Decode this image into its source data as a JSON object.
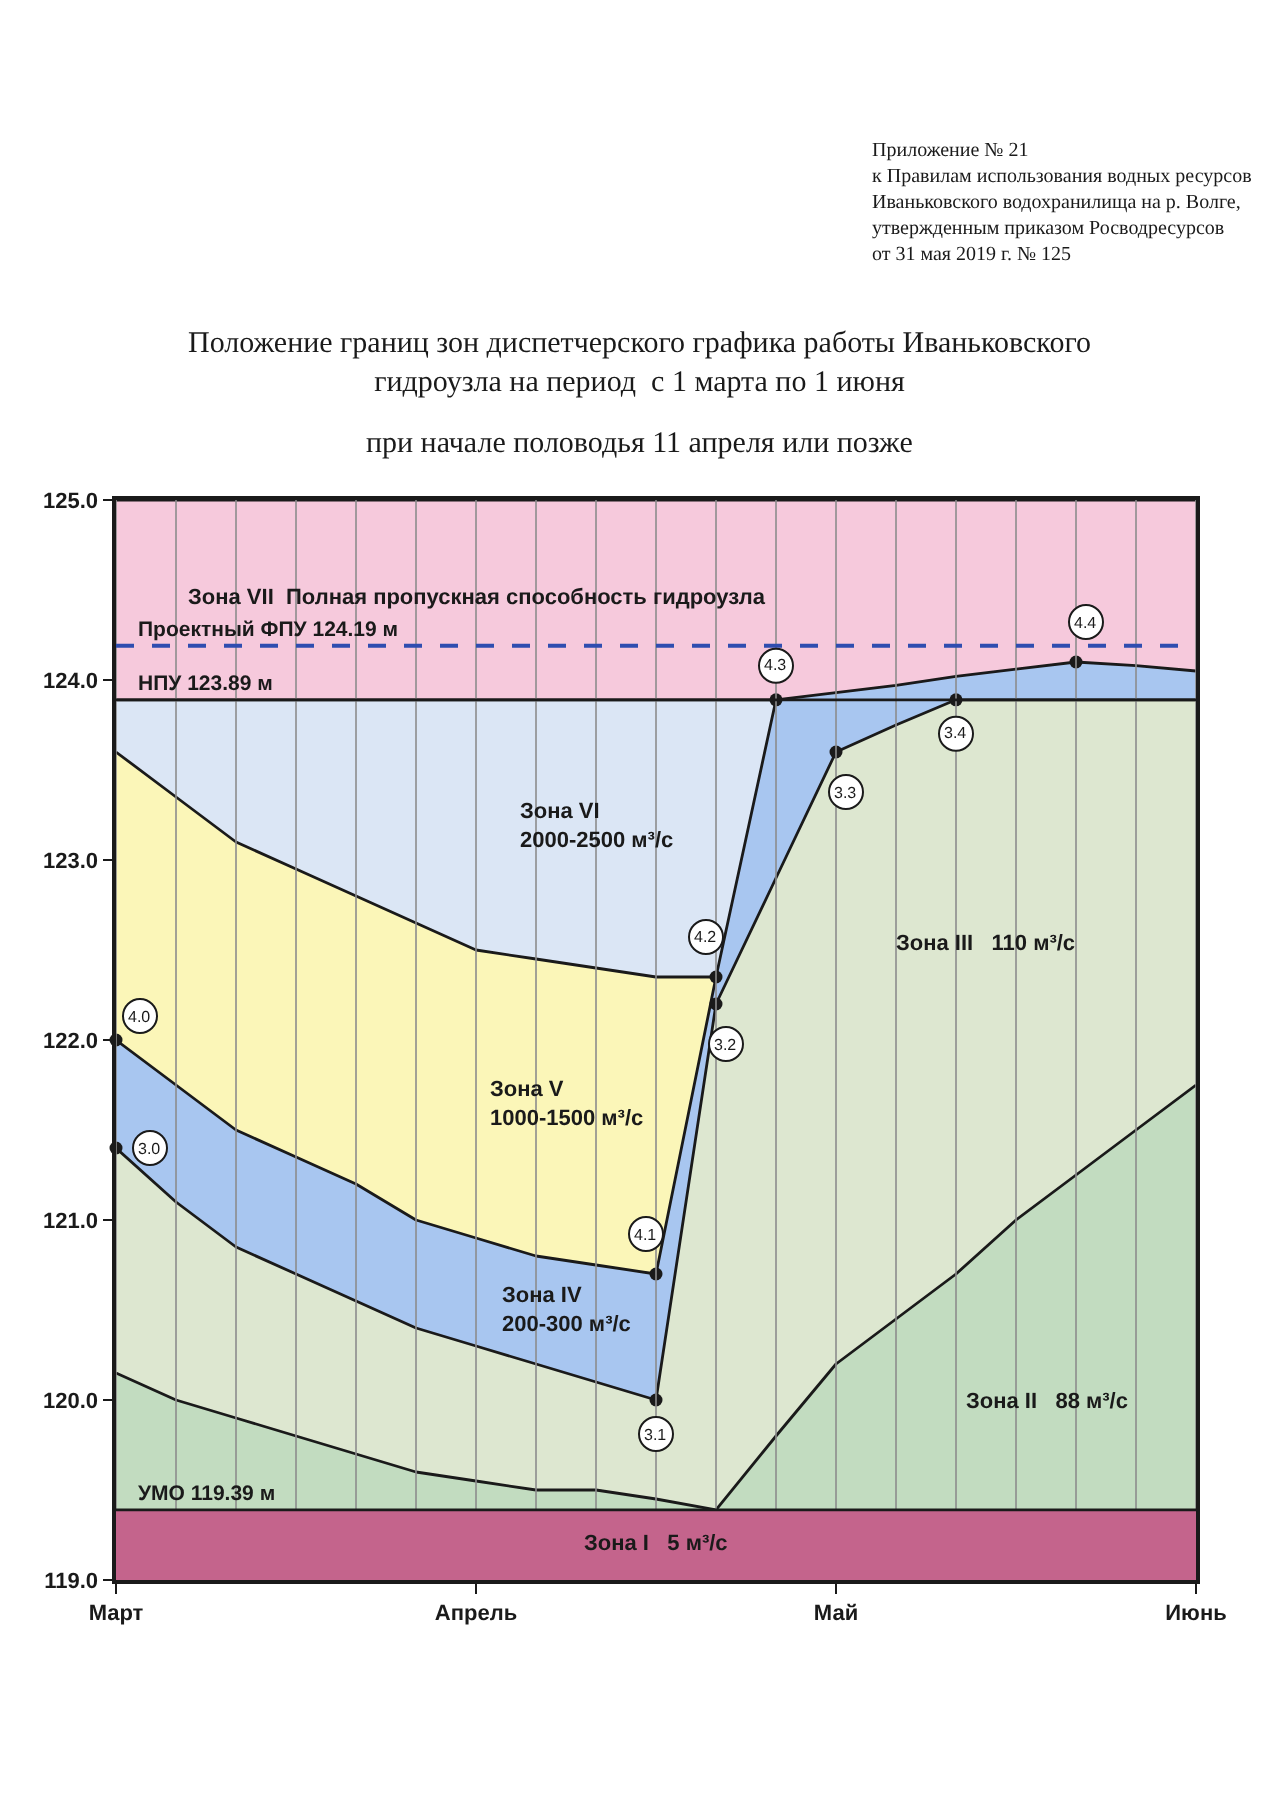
{
  "chart_data": {
    "type": "area",
    "title": "Положение границ зон диспетчерского графика работы Иваньковского гидроузла на период  с 1 марта по 1 июня",
    "subtitle": "при начале половодья 11 апреля или позже",
    "categories": [
      "Март",
      null,
      null,
      null,
      null,
      null,
      "Апрель",
      null,
      null,
      null,
      null,
      null,
      "Май",
      null,
      null,
      null,
      null,
      null,
      "Июнь"
    ],
    "ylim": [
      119,
      125
    ],
    "yticks": [
      {
        "value": 119,
        "label": "119.0"
      },
      {
        "value": 120,
        "label": "120.0"
      },
      {
        "value": 121,
        "label": "121.0"
      },
      {
        "value": 122,
        "label": "122.0"
      },
      {
        "value": 123,
        "label": "123.0"
      },
      {
        "value": 124,
        "label": "124.0"
      },
      {
        "value": 125,
        "label": "125.0"
      }
    ],
    "grid": "x",
    "series": [
      {
        "name": "Зона VII  Полная пропускная способность гидроузла",
        "color": "#f6c9dc",
        "values": [
          125,
          125,
          125,
          125,
          125,
          125,
          125,
          125,
          125,
          125,
          125,
          125,
          125,
          125,
          125,
          125,
          125,
          125,
          125
        ]
      },
      {
        "name": "Зона VI\n2000-2500 м³/с",
        "color": "#dbe6f5",
        "values": [
          123.89,
          123.89,
          123.89,
          123.89,
          123.89,
          123.89,
          123.89,
          123.89,
          123.89,
          123.89,
          123.89,
          123.89,
          null,
          null,
          null,
          null,
          null,
          null,
          null
        ]
      },
      {
        "name": "Зона V\n1000-1500 м³/с",
        "color": "#fbf6b8",
        "values": [
          123.6,
          123.35,
          123.1,
          122.95,
          122.8,
          122.65,
          122.5,
          122.45,
          122.4,
          122.35,
          122.35,
          null,
          null,
          null,
          null,
          null,
          null,
          null,
          null
        ]
      },
      {
        "name": "Зона IV\n200-300 м³/с",
        "color": "#a8c6f0",
        "values": [
          122.0,
          121.75,
          121.5,
          121.35,
          121.2,
          121.0,
          120.9,
          120.8,
          120.75,
          120.7,
          122.35,
          123.89,
          123.93,
          123.97,
          124.02,
          124.06,
          124.1,
          124.08,
          124.05
        ]
      },
      {
        "name": "Зона III   110 м³/с",
        "color": "#dde7d0",
        "values": [
          121.4,
          121.1,
          120.85,
          120.7,
          120.55,
          120.4,
          120.3,
          120.2,
          120.1,
          120.0,
          122.2,
          122.9,
          123.6,
          123.75,
          123.89,
          123.89,
          123.89,
          123.89,
          123.89
        ]
      },
      {
        "name": "Зона II   88 м³/с",
        "color": "#c2dcc0",
        "values": [
          120.15,
          120.0,
          119.9,
          119.8,
          119.7,
          119.6,
          119.55,
          119.5,
          119.5,
          119.45,
          119.39,
          119.8,
          120.2,
          120.45,
          120.7,
          121.0,
          121.25,
          121.5,
          121.75
        ]
      },
      {
        "type": "scatter",
        "marker": "circle",
        "color": "#1a1a1a",
        "values": [
          122.0,
          null,
          null,
          null,
          null,
          null,
          null,
          null,
          null,
          120.7,
          122.35,
          123.89,
          null,
          null,
          null,
          null,
          124.1,
          null,
          null
        ]
      },
      {
        "type": "scatter",
        "marker": "circle",
        "color": "#1a1a1a",
        "values": [
          121.4,
          null,
          null,
          null,
          null,
          null,
          null,
          null,
          null,
          120.0,
          122.2,
          null,
          123.6,
          null,
          123.89,
          null,
          null,
          null,
          null
        ]
      }
    ],
    "bands": [
      {
        "axis": "y",
        "from": 119,
        "to": 119.39,
        "label": "Зона I   5 м³/с",
        "color": "#c4648c"
      }
    ],
    "ref_lines": [
      {
        "axis": "y",
        "value": 124.19,
        "label": "Проектный ФПУ 124.19 м",
        "color": "#2f4db0",
        "line_style": "dashed"
      },
      {
        "axis": "y",
        "value": 123.89,
        "label": "НПУ 123.89 м",
        "color": "#1a1a1a"
      },
      {
        "axis": "y",
        "value": 119.39,
        "label": "УМО 119.39 м",
        "color": "#1a1a1a"
      }
    ],
    "annotations": [
      "Приложение № 21\nк Правилам использования водных ресурсов\nИваньковского водохранилища на р. Волге,\nутвержденным приказом Росводресурсов\nот 31 мая 2019 г. № 125",
      {
        "text": "4.0",
        "x": "Март",
        "y": 122.0
      },
      {
        "text": "4.1",
        "y": 120.7
      },
      {
        "text": "4.2",
        "y": 122.35
      },
      {
        "text": "4.3",
        "y": 123.89
      },
      {
        "text": "4.4",
        "y": 124.1
      },
      {
        "text": "3.0",
        "x": "Март",
        "y": 121.4
      },
      {
        "text": "3.1",
        "y": 120.0
      },
      {
        "text": "3.2",
        "y": 122.2
      },
      {
        "text": "3.3",
        "x": "Май",
        "y": 123.6
      },
      {
        "text": "3.4",
        "y": 123.89
      }
    ]
  }
}
